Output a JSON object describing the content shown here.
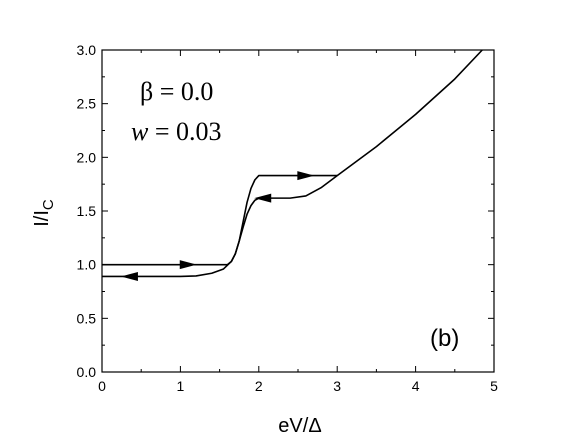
{
  "chart_data": {
    "type": "line",
    "xlabel": "eV/Δ",
    "ylabel_main": "I/I",
    "ylabel_sub": "C",
    "xlim": [
      0,
      5
    ],
    "ylim": [
      0,
      3
    ],
    "x_ticks": [
      0,
      1,
      2,
      3,
      4,
      5
    ],
    "x_tick_labels": [
      "0",
      "1",
      "2",
      "3",
      "4",
      "5"
    ],
    "y_ticks": [
      0,
      0.5,
      1.0,
      1.5,
      2.0,
      2.5,
      3.0
    ],
    "y_tick_labels": [
      "0.0",
      "0.5",
      "1.0",
      "1.5",
      "2.0",
      "2.5",
      "3.0"
    ],
    "grid": false,
    "annotations": {
      "beta_text": "β = 0.0",
      "w_var": "w",
      "w_value": " = 0.03",
      "panel_label": "(b)"
    },
    "series": [
      {
        "values": [
          [
            0,
            1.0
          ],
          [
            0.5,
            1.0
          ],
          [
            1.0,
            1.0
          ],
          [
            1.5,
            1.0
          ],
          [
            1.6,
            1.0
          ],
          [
            1.65,
            1.03
          ],
          [
            1.7,
            1.1
          ],
          [
            1.75,
            1.22
          ],
          [
            1.8,
            1.4
          ],
          [
            1.85,
            1.58
          ],
          [
            1.9,
            1.71
          ],
          [
            1.95,
            1.79
          ],
          [
            2.0,
            1.83
          ],
          [
            2.4,
            1.83
          ],
          [
            2.8,
            1.83
          ],
          [
            3.0,
            1.83
          ]
        ],
        "arrows": [
          {
            "at": [
              1.1,
              1.0
            ],
            "dir": "right"
          },
          {
            "at": [
              2.6,
              1.83
            ],
            "dir": "right"
          }
        ]
      },
      {
        "values": [
          [
            0,
            0.89
          ],
          [
            0.5,
            0.89
          ],
          [
            1.0,
            0.89
          ],
          [
            1.2,
            0.895
          ],
          [
            1.4,
            0.92
          ],
          [
            1.55,
            0.96
          ],
          [
            1.65,
            1.03
          ],
          [
            1.7,
            1.1
          ],
          [
            1.75,
            1.22
          ],
          [
            1.8,
            1.35
          ],
          [
            1.85,
            1.47
          ],
          [
            1.9,
            1.55
          ],
          [
            1.95,
            1.6
          ],
          [
            2.0,
            1.62
          ],
          [
            2.2,
            1.62
          ],
          [
            2.4,
            1.62
          ],
          [
            2.6,
            1.64
          ],
          [
            2.8,
            1.72
          ],
          [
            3.0,
            1.83
          ],
          [
            3.5,
            2.1
          ],
          [
            4.0,
            2.4
          ],
          [
            4.5,
            2.73
          ],
          [
            4.85,
            3.0
          ]
        ],
        "arrows": [
          {
            "at": [
              0.35,
              0.89
            ],
            "dir": "left"
          },
          {
            "at": [
              2.05,
              1.62
            ],
            "dir": "left"
          }
        ]
      }
    ]
  }
}
